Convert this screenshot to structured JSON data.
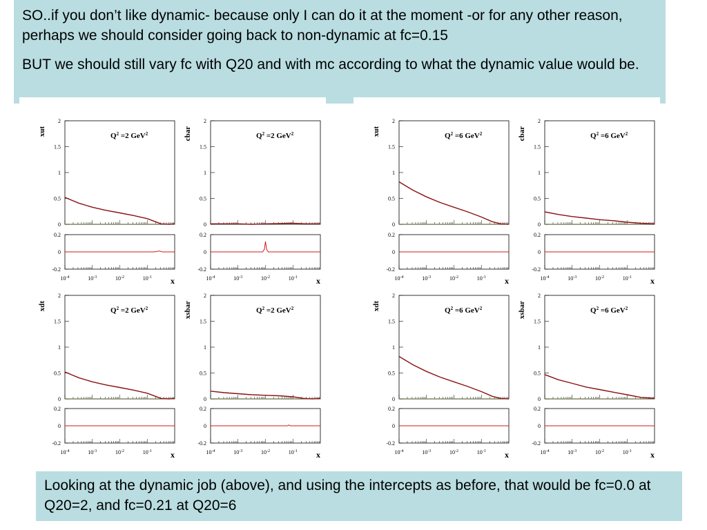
{
  "slide": {
    "top_paragraphs": [
      "SO..if you don’t like dynamic- because only I can do it at the moment -or for any other reason, perhaps we should consider going back to non-dynamic at fc=0.15",
      "BUT we should still vary fc with Q20 and with mc according to what the dynamic value would be."
    ],
    "bottom_text": "Looking at the dynamic job (above), and using the intercepts as before, that would be fc=0.0 at Q20=2, and fc=0.21 at Q20=6",
    "curve_color": "#8b1010",
    "ratio_color": "#d11a1a",
    "zero_line_color": "#b0c860"
  },
  "chart_data": [
    {
      "type": "line",
      "ylabel": "xut",
      "panel_label": [
        "Q",
        "2",
        " =2 GeV",
        "2"
      ],
      "xlabel": "x",
      "xscale": "log",
      "xlim_log10": [
        -4,
        0
      ],
      "ylim": [
        0,
        2
      ],
      "y_ticks": [
        "2",
        "1.5",
        "1",
        "0.5",
        "0"
      ],
      "x_ticks": [
        "10-4",
        "10-3",
        "10-2",
        "10-1"
      ],
      "ratio_ylim": [
        -0.2,
        0.2
      ],
      "ratio_ticks": [
        "0.2",
        "0",
        "-0.2"
      ],
      "points": [
        [
          -4,
          0.52
        ],
        [
          -3.5,
          0.41
        ],
        [
          -3,
          0.33
        ],
        [
          -2.5,
          0.27
        ],
        [
          -2,
          0.22
        ],
        [
          -1.5,
          0.17
        ],
        [
          -1,
          0.11
        ],
        [
          -0.7,
          0.05
        ],
        [
          -0.5,
          0.01
        ],
        [
          -0.2,
          0
        ],
        [
          0,
          0.01
        ]
      ],
      "ratio_points": [
        [
          -4,
          0
        ],
        [
          -0.75,
          0
        ],
        [
          -0.55,
          0.01
        ],
        [
          -0.45,
          0
        ],
        [
          0,
          0
        ]
      ]
    },
    {
      "type": "line",
      "ylabel": "cbar",
      "panel_label": [
        "Q",
        "2",
        " =2 GeV",
        "2"
      ],
      "xlabel": "x",
      "xscale": "log",
      "xlim_log10": [
        -4,
        0
      ],
      "ylim": [
        0,
        2
      ],
      "y_ticks": [
        "2",
        "1.5",
        "1",
        "0.5",
        "0"
      ],
      "x_ticks": [
        "10-4",
        "10-3",
        "10-2",
        "10-1"
      ],
      "ratio_ylim": [
        -0.2,
        0.2
      ],
      "ratio_ticks": [
        "0.2",
        "0",
        "-0.2"
      ],
      "points": [
        [
          -4,
          0.01
        ],
        [
          -3,
          0.01
        ],
        [
          -2.5,
          0
        ],
        [
          -2,
          0.01
        ],
        [
          -1,
          0.02
        ],
        [
          -0.5,
          0.01
        ],
        [
          0,
          0.01
        ]
      ],
      "ratio_points": [
        [
          -4,
          0
        ],
        [
          -2.1,
          0
        ],
        [
          -2.04,
          0.03
        ],
        [
          -2,
          0.12
        ],
        [
          -1.96,
          0.03
        ],
        [
          -1.9,
          0
        ],
        [
          0,
          0
        ]
      ]
    },
    {
      "type": "line",
      "ylabel": "xut",
      "panel_label": [
        "Q",
        "2",
        " =6 GeV",
        "2"
      ],
      "xlabel": "x",
      "xscale": "log",
      "xlim_log10": [
        -4,
        0
      ],
      "ylim": [
        0,
        2
      ],
      "y_ticks": [
        "2",
        "1.5",
        "1",
        "0.5",
        "0"
      ],
      "x_ticks": [
        "10-4",
        "10-3",
        "10-2",
        "10-1"
      ],
      "ratio_ylim": [
        -0.2,
        0.2
      ],
      "ratio_ticks": [
        "0.2",
        "0",
        "-0.2"
      ],
      "points": [
        [
          -4,
          0.82
        ],
        [
          -3.5,
          0.66
        ],
        [
          -3,
          0.53
        ],
        [
          -2.5,
          0.42
        ],
        [
          -2,
          0.33
        ],
        [
          -1.5,
          0.24
        ],
        [
          -1,
          0.14
        ],
        [
          -0.6,
          0.05
        ],
        [
          -0.3,
          0.01
        ],
        [
          0,
          0
        ]
      ],
      "ratio_points": [
        [
          -4,
          0
        ],
        [
          0,
          0
        ]
      ]
    },
    {
      "type": "line",
      "ylabel": "cbar",
      "panel_label": [
        "Q",
        "2",
        " =6 GeV",
        "2"
      ],
      "xlabel": "x",
      "xscale": "log",
      "xlim_log10": [
        -4,
        0
      ],
      "ylim": [
        0,
        2
      ],
      "y_ticks": [
        "2",
        "1.5",
        "1",
        "0.5",
        "0"
      ],
      "x_ticks": [
        "10-4",
        "10-3",
        "10-2",
        "10-1"
      ],
      "ratio_ylim": [
        -0.2,
        0.2
      ],
      "ratio_ticks": [
        "0.2",
        "0",
        "-0.2"
      ],
      "points": [
        [
          -4,
          0.24
        ],
        [
          -3.5,
          0.19
        ],
        [
          -3,
          0.15
        ],
        [
          -2.5,
          0.12
        ],
        [
          -2,
          0.09
        ],
        [
          -1.5,
          0.07
        ],
        [
          -1,
          0.04
        ],
        [
          -0.5,
          0.02
        ],
        [
          0,
          0.01
        ]
      ],
      "ratio_points": [
        [
          -4,
          0
        ],
        [
          0,
          0
        ]
      ]
    },
    {
      "type": "line",
      "ylabel": "xdt",
      "panel_label": [
        "Q",
        "2",
        " =2 GeV",
        "2"
      ],
      "xlabel": "x",
      "xscale": "log",
      "xlim_log10": [
        -4,
        0
      ],
      "ylim": [
        0,
        2
      ],
      "y_ticks": [
        "2",
        "1.5",
        "1",
        "0.5",
        "0"
      ],
      "x_ticks": [
        "10-4",
        "10-3",
        "10-2",
        "10-1"
      ],
      "ratio_ylim": [
        -0.2,
        0.2
      ],
      "ratio_ticks": [
        "0.2",
        "0",
        "-0.2"
      ],
      "points": [
        [
          -4,
          0.52
        ],
        [
          -3.5,
          0.41
        ],
        [
          -3,
          0.33
        ],
        [
          -2.5,
          0.27
        ],
        [
          -2,
          0.22
        ],
        [
          -1.5,
          0.17
        ],
        [
          -1,
          0.11
        ],
        [
          -0.7,
          0.05
        ],
        [
          -0.5,
          0.01
        ],
        [
          -0.2,
          0
        ],
        [
          0,
          0.01
        ]
      ],
      "ratio_points": [
        [
          -4,
          0
        ],
        [
          0,
          0
        ]
      ]
    },
    {
      "type": "line",
      "ylabel": "xsbar",
      "panel_label": [
        "Q",
        "2",
        " =2 GeV",
        "2"
      ],
      "xlabel": "x",
      "xscale": "log",
      "xlim_log10": [
        -4,
        0
      ],
      "ylim": [
        0,
        2
      ],
      "y_ticks": [
        "2",
        "1.5",
        "1",
        "0.5",
        "0"
      ],
      "x_ticks": [
        "10-4",
        "10-3",
        "10-2",
        "10-1"
      ],
      "ratio_ylim": [
        -0.2,
        0.2
      ],
      "ratio_ticks": [
        "0.2",
        "0",
        "-0.2"
      ],
      "points": [
        [
          -4,
          0.15
        ],
        [
          -3.5,
          0.12
        ],
        [
          -3,
          0.1
        ],
        [
          -2.5,
          0.08
        ],
        [
          -2,
          0.07
        ],
        [
          -1.5,
          0.06
        ],
        [
          -1,
          0.04
        ],
        [
          -0.6,
          0.01
        ],
        [
          -0.3,
          0
        ],
        [
          0,
          0.01
        ]
      ],
      "ratio_points": [
        [
          -4,
          0
        ],
        [
          -1.2,
          0
        ],
        [
          -1.15,
          0.01
        ],
        [
          -1.1,
          0
        ],
        [
          0,
          0
        ]
      ]
    },
    {
      "type": "line",
      "ylabel": "xdt",
      "panel_label": [
        "Q",
        "2",
        " =6 GeV",
        "2"
      ],
      "xlabel": "x",
      "xscale": "log",
      "xlim_log10": [
        -4,
        0
      ],
      "ylim": [
        0,
        2
      ],
      "y_ticks": [
        "2",
        "1.5",
        "1",
        "0.5",
        "0"
      ],
      "x_ticks": [
        "10-4",
        "10-3",
        "10-2",
        "10-1"
      ],
      "ratio_ylim": [
        -0.2,
        0.2
      ],
      "ratio_ticks": [
        "0.2",
        "0",
        "-0.2"
      ],
      "points": [
        [
          -4,
          0.82
        ],
        [
          -3.5,
          0.66
        ],
        [
          -3,
          0.53
        ],
        [
          -2.5,
          0.42
        ],
        [
          -2,
          0.33
        ],
        [
          -1.5,
          0.24
        ],
        [
          -1,
          0.14
        ],
        [
          -0.6,
          0.05
        ],
        [
          -0.3,
          0.01
        ],
        [
          0,
          0
        ]
      ],
      "ratio_points": [
        [
          -4,
          0
        ],
        [
          0,
          0
        ]
      ]
    },
    {
      "type": "line",
      "ylabel": "xsbar",
      "panel_label": [
        "Q",
        "2",
        " =6 GeV",
        "2"
      ],
      "xlabel": "x",
      "xscale": "log",
      "xlim_log10": [
        -4,
        0
      ],
      "ylim": [
        0,
        2
      ],
      "y_ticks": [
        "2",
        "1.5",
        "1",
        "0.5",
        "0"
      ],
      "x_ticks": [
        "10-4",
        "10-3",
        "10-2",
        "10-1"
      ],
      "ratio_ylim": [
        -0.2,
        0.2
      ],
      "ratio_ticks": [
        "0.2",
        "0",
        "-0.2"
      ],
      "points": [
        [
          -4,
          0.47
        ],
        [
          -3.5,
          0.37
        ],
        [
          -3,
          0.3
        ],
        [
          -2.5,
          0.23
        ],
        [
          -2,
          0.18
        ],
        [
          -1.5,
          0.13
        ],
        [
          -1,
          0.08
        ],
        [
          -0.5,
          0.03
        ],
        [
          0,
          0.01
        ]
      ],
      "ratio_points": [
        [
          -4,
          0
        ],
        [
          0,
          0
        ]
      ]
    }
  ]
}
